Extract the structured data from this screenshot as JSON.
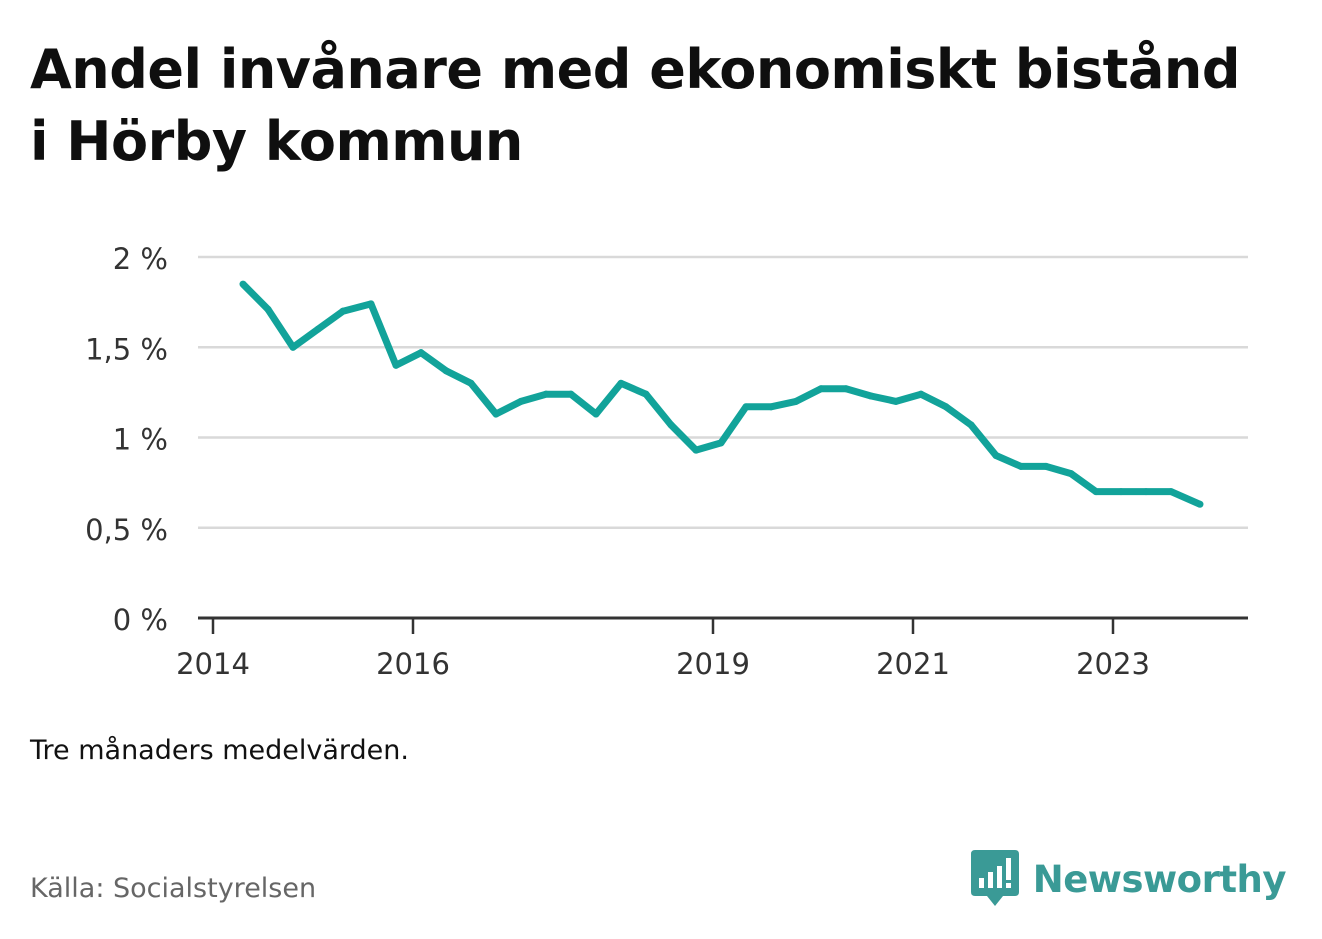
{
  "title": "Andel invånare med ekonomiskt bistånd i Hörby kommun",
  "note": "Tre månaders medelvärden.",
  "source": "Källa: Socialstyrelsen",
  "brand": {
    "name": "Newsworthy",
    "icon": "newsworthy-logo-icon",
    "color": "#3a9a96"
  },
  "colors": {
    "line": "#12a39a",
    "grid": "#d9d9d9",
    "axis": "#333333"
  },
  "chart_data": {
    "type": "line",
    "title": "Andel invånare med ekonomiskt bistånd i Hörby kommun",
    "xlabel": "",
    "ylabel": "",
    "ylim": [
      0,
      2
    ],
    "yticks": [
      0,
      0.5,
      1,
      1.5,
      2
    ],
    "ytick_labels": [
      "0 %",
      "0,5 %",
      "1 %",
      "1,5 %",
      "2 %"
    ],
    "xlim": [
      2014,
      2024.35
    ],
    "xticks": [
      2014,
      2016,
      2019,
      2021,
      2023
    ],
    "xtick_labels": [
      "2014",
      "2016",
      "2019",
      "2021",
      "2023"
    ],
    "grid": true,
    "legend": "none",
    "series": [
      {
        "x": [
          2014.3,
          2014.55,
          2014.8,
          2015.05,
          2015.3,
          2015.58,
          2015.83,
          2016.08,
          2016.33,
          2016.58,
          2016.83,
          2017.08,
          2017.33,
          2017.58,
          2017.83,
          2018.08,
          2018.33,
          2018.58,
          2018.83,
          2019.08,
          2019.33,
          2019.58,
          2019.83,
          2020.08,
          2020.33,
          2020.58,
          2020.83,
          2021.08,
          2021.33,
          2021.58,
          2021.83,
          2022.08,
          2022.33,
          2022.58,
          2022.83,
          2023.08,
          2023.33,
          2023.58,
          2023.87
        ],
        "values": [
          1.85,
          1.71,
          1.5,
          1.6,
          1.7,
          1.74,
          1.4,
          1.47,
          1.37,
          1.3,
          1.13,
          1.2,
          1.24,
          1.24,
          1.13,
          1.3,
          1.24,
          1.07,
          0.93,
          0.97,
          1.17,
          1.17,
          1.2,
          1.27,
          1.27,
          1.23,
          1.2,
          1.24,
          1.17,
          1.07,
          0.9,
          0.84,
          0.84,
          0.8,
          0.7,
          0.7,
          0.7,
          0.7,
          0.63
        ]
      }
    ]
  }
}
